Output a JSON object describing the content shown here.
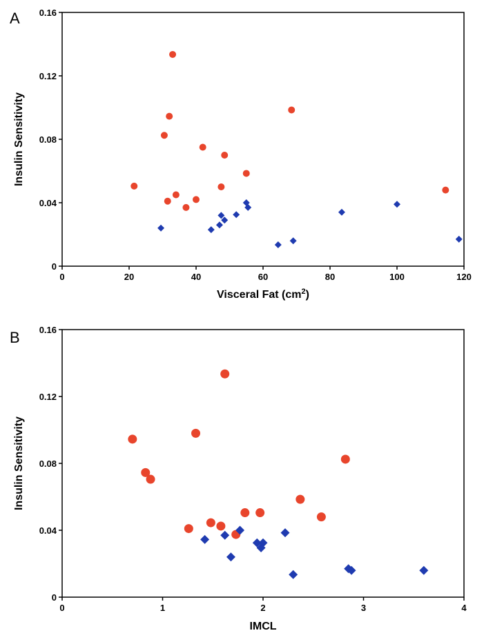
{
  "colors": {
    "series_red": "#e8452c",
    "series_blue": "#1f3bb0",
    "axis": "#000000"
  },
  "chart_data": [
    {
      "panel": "A",
      "type": "scatter",
      "xlabel": "Visceral Fat (cm",
      "xlabel_superscript": "2",
      "xlabel_suffix": ")",
      "ylabel": "Insulin Sensitivity",
      "xlim": [
        0,
        120
      ],
      "ylim": [
        0,
        0.16
      ],
      "xticks": [
        0,
        20,
        40,
        60,
        80,
        100,
        120
      ],
      "yticks": [
        0,
        0.04,
        0.08,
        0.12,
        0.16
      ],
      "xtick_labels": [
        "0",
        "20",
        "40",
        "60",
        "80",
        "100",
        "120"
      ],
      "ytick_labels": [
        "0",
        "0.04",
        "0.08",
        "0.12",
        "0.16"
      ],
      "grid": false,
      "legend": "none",
      "series": [
        {
          "marker": "circle",
          "color": "#e8452c",
          "points": [
            [
              21.5,
              0.0505
            ],
            [
              30.5,
              0.0825
            ],
            [
              31.5,
              0.041
            ],
            [
              32.0,
              0.0945
            ],
            [
              33.0,
              0.1335
            ],
            [
              34.0,
              0.045
            ],
            [
              37.0,
              0.037
            ],
            [
              40.0,
              0.042
            ],
            [
              42.0,
              0.075
            ],
            [
              47.5,
              0.05
            ],
            [
              48.5,
              0.07
            ],
            [
              55.0,
              0.0585
            ],
            [
              68.5,
              0.0985
            ],
            [
              114.5,
              0.048
            ]
          ]
        },
        {
          "marker": "diamond",
          "color": "#1f3bb0",
          "points": [
            [
              29.5,
              0.024
            ],
            [
              44.5,
              0.023
            ],
            [
              47.0,
              0.026
            ],
            [
              47.5,
              0.032
            ],
            [
              48.5,
              0.029
            ],
            [
              52.0,
              0.0325
            ],
            [
              55.0,
              0.04
            ],
            [
              55.5,
              0.037
            ],
            [
              64.5,
              0.0135
            ],
            [
              69.0,
              0.016
            ],
            [
              83.5,
              0.034
            ],
            [
              100.0,
              0.039
            ],
            [
              118.5,
              0.017
            ]
          ]
        }
      ]
    },
    {
      "panel": "B",
      "type": "scatter",
      "xlabel": "IMCL",
      "ylabel": "Insulin Sensitivity",
      "xlim": [
        0,
        4
      ],
      "ylim": [
        0,
        0.16
      ],
      "xticks": [
        0,
        1,
        2,
        3,
        4
      ],
      "yticks": [
        0,
        0.04,
        0.08,
        0.12,
        0.16
      ],
      "xtick_labels": [
        "0",
        "1",
        "2",
        "3",
        "4"
      ],
      "ytick_labels": [
        "0",
        "0.04",
        "0.08",
        "0.12",
        "0.16"
      ],
      "grid": false,
      "legend": "none",
      "series": [
        {
          "marker": "circle",
          "color": "#e8452c",
          "points": [
            [
              0.7,
              0.0945
            ],
            [
              0.83,
              0.0745
            ],
            [
              0.88,
              0.0705
            ],
            [
              1.26,
              0.041
            ],
            [
              1.33,
              0.098
            ],
            [
              1.48,
              0.0445
            ],
            [
              1.58,
              0.0425
            ],
            [
              1.62,
              0.1335
            ],
            [
              1.73,
              0.0375
            ],
            [
              1.82,
              0.0505
            ],
            [
              1.97,
              0.0505
            ],
            [
              2.37,
              0.0585
            ],
            [
              2.58,
              0.048
            ],
            [
              2.82,
              0.0825
            ]
          ]
        },
        {
          "marker": "diamond",
          "color": "#1f3bb0",
          "points": [
            [
              1.42,
              0.0345
            ],
            [
              1.62,
              0.037
            ],
            [
              1.68,
              0.024
            ],
            [
              1.77,
              0.04
            ],
            [
              1.94,
              0.0325
            ],
            [
              1.98,
              0.0295
            ],
            [
              2.0,
              0.0325
            ],
            [
              2.22,
              0.0385
            ],
            [
              2.3,
              0.0135
            ],
            [
              2.85,
              0.017
            ],
            [
              2.88,
              0.016
            ],
            [
              3.6,
              0.016
            ]
          ]
        }
      ]
    }
  ]
}
